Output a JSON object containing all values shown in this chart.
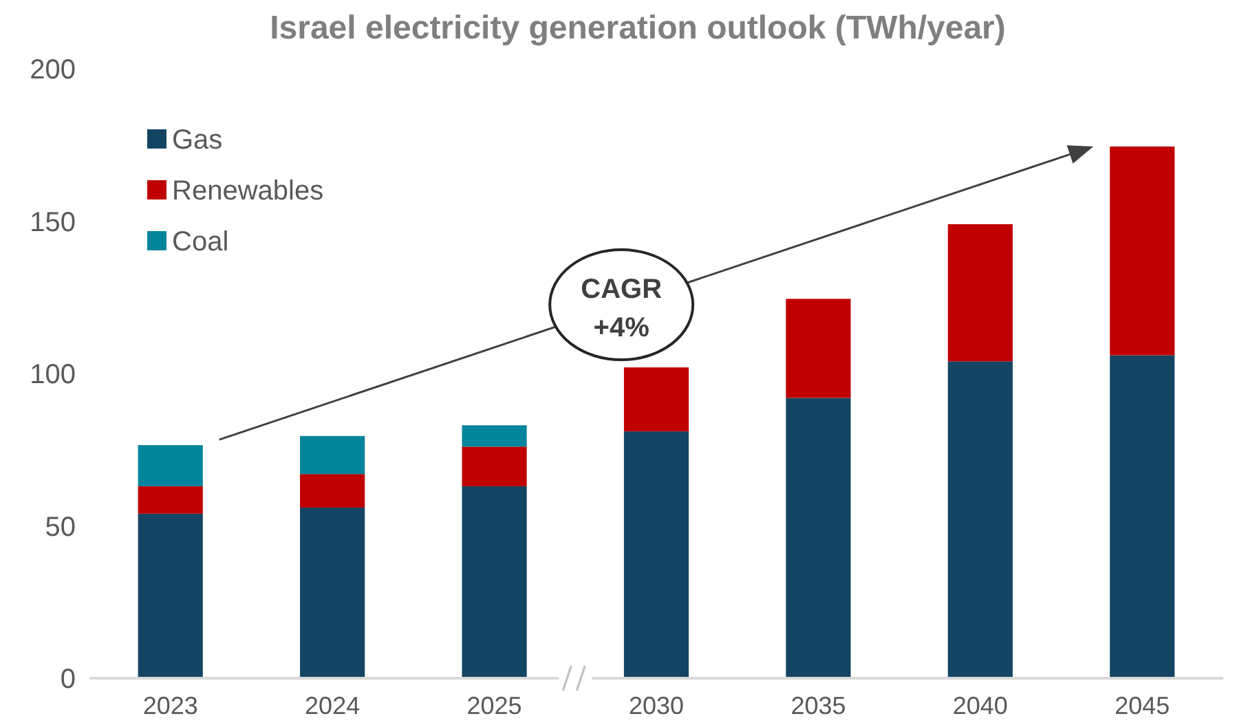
{
  "chart_data": {
    "type": "bar",
    "title": "Israel electricity generation outlook (TWh/year)",
    "categories": [
      "2023",
      "2024",
      "2025",
      "2030",
      "2035",
      "2040",
      "2045"
    ],
    "stacked": true,
    "series": [
      {
        "name": "Gas",
        "color": "#134563",
        "values": [
          54,
          56,
          63,
          81,
          92,
          104,
          106
        ]
      },
      {
        "name": "Renewables",
        "color": "#c00000",
        "values": [
          9,
          11,
          13,
          21,
          32.5,
          45,
          68.5
        ]
      },
      {
        "name": "Coal",
        "color": "#02849b",
        "values": [
          13.5,
          12.5,
          7,
          null,
          null,
          null,
          null
        ]
      }
    ],
    "ylim": [
      0,
      200
    ],
    "yticks": [
      0,
      50,
      100,
      150,
      200
    ],
    "grid": false,
    "legend": "top left",
    "annotations": [
      "CAGR +4%"
    ]
  }
}
